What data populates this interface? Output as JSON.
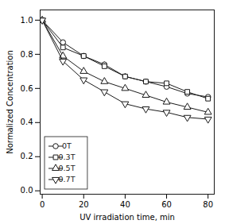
{
  "chart_data": {
    "type": "line",
    "xlabel": "UV irradiation time, min",
    "ylabel": "Normalized Concentration",
    "x": [
      0,
      10,
      20,
      30,
      40,
      50,
      60,
      70,
      80
    ],
    "series": [
      {
        "name": "0T",
        "marker": "circle",
        "values": [
          1.0,
          0.87,
          0.79,
          0.74,
          0.67,
          0.64,
          0.61,
          0.57,
          0.55
        ],
        "yerr": [
          0.0,
          0.01,
          0.01,
          0.015,
          0.015,
          0.01,
          0.01,
          0.01,
          0.01
        ]
      },
      {
        "name": "0.3T",
        "marker": "square",
        "values": [
          1.0,
          0.84,
          0.79,
          0.73,
          0.67,
          0.64,
          0.63,
          0.58,
          0.54
        ],
        "yerr": [
          0.0,
          0.01,
          0.015,
          0.015,
          0.015,
          0.01,
          0.01,
          0.01,
          0.01
        ]
      },
      {
        "name": "0.5T",
        "marker": "triangle-up",
        "values": [
          1.0,
          0.79,
          0.7,
          0.64,
          0.6,
          0.56,
          0.52,
          0.49,
          0.46
        ],
        "yerr": [
          0.0,
          0.01,
          0.01,
          0.01,
          0.01,
          0.01,
          0.01,
          0.01,
          0.01
        ]
      },
      {
        "name": "0.7T",
        "marker": "triangle-down",
        "values": [
          1.0,
          0.76,
          0.65,
          0.58,
          0.51,
          0.48,
          0.46,
          0.43,
          0.42
        ],
        "yerr": [
          0.0,
          0.01,
          0.01,
          0.01,
          0.01,
          0.01,
          0.01,
          0.01,
          0.01
        ]
      }
    ],
    "color": "#1a1a1a",
    "xlim": [
      -1,
      83
    ],
    "ylim": [
      -0.02,
      1.06
    ],
    "xticks": [
      0,
      20,
      40,
      60,
      80
    ],
    "yticks": [
      {
        "value": 0,
        "label": "0.0"
      },
      0.2,
      0.4,
      0.6,
      0.8,
      {
        "value": 1,
        "label": "1.0"
      }
    ],
    "legend": "lower left",
    "grid": false
  }
}
